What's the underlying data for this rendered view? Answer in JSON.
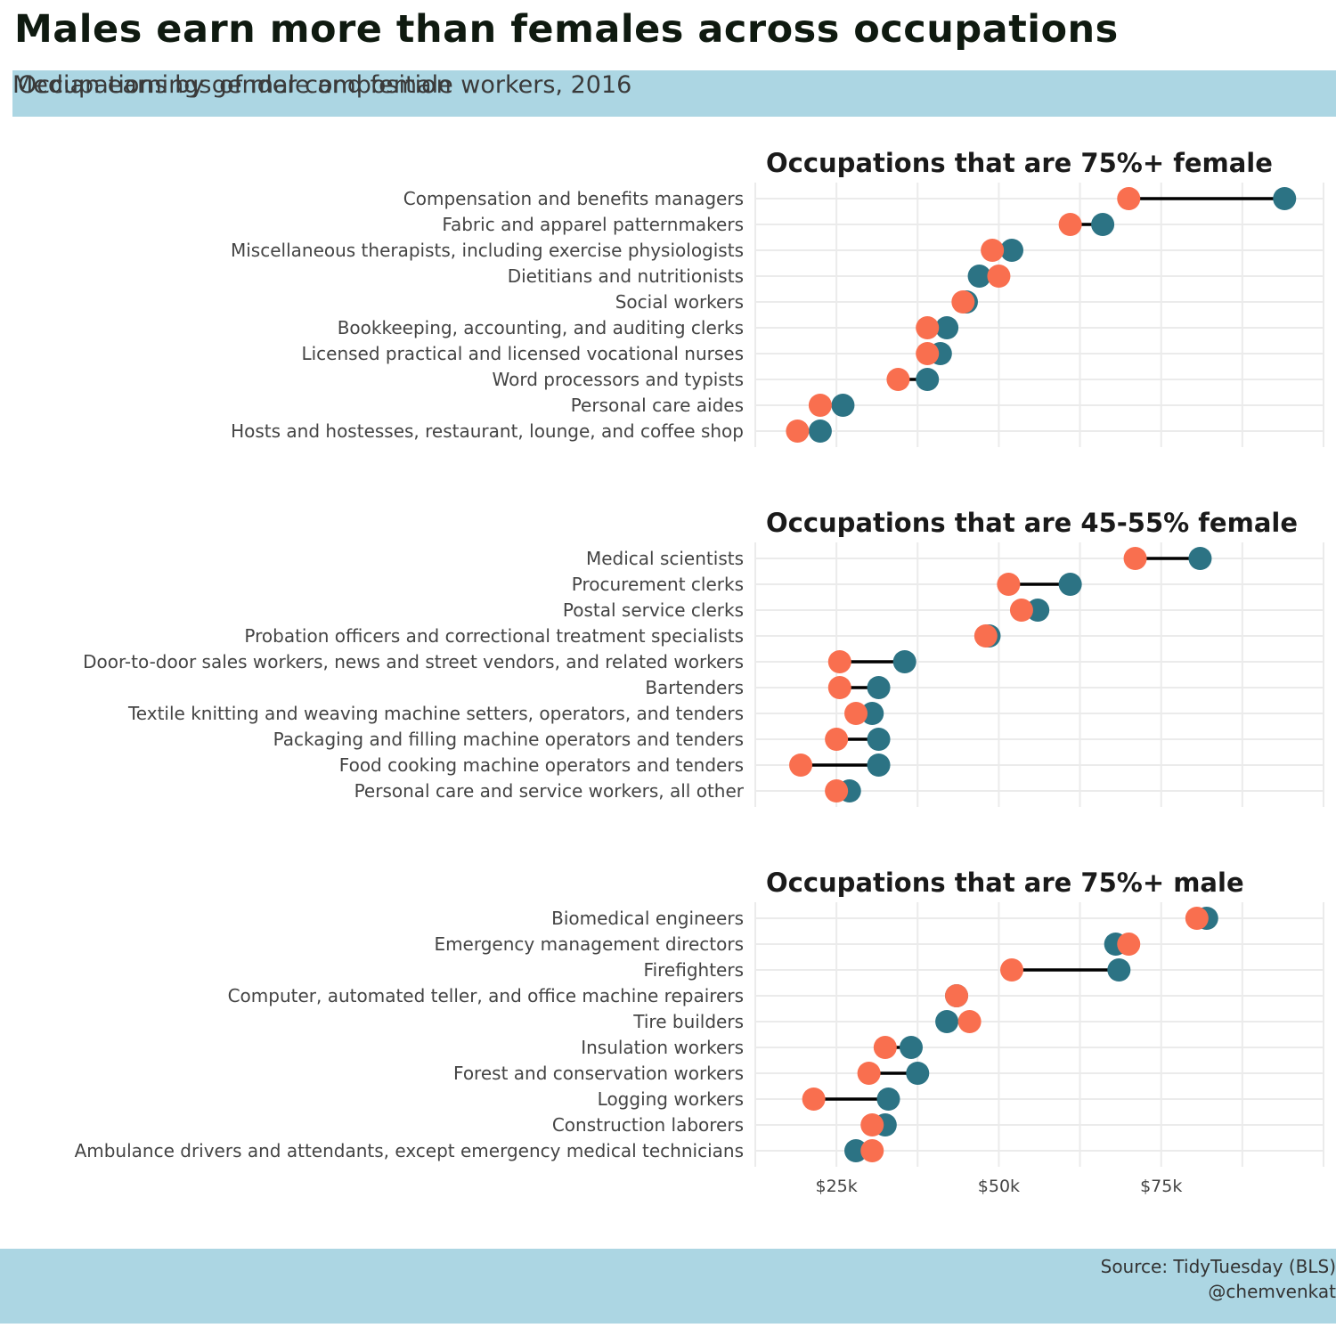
{
  "title": "Males earn more than females across occupations",
  "subtitle": {
    "line1": "Median earnings of male and female workers, 2016",
    "line2": "Occupations by gender composition"
  },
  "caption": {
    "source": "Source: TidyTuesday (BLS)",
    "author": "@chemvenkat"
  },
  "colors": {
    "male": "#2c7384",
    "female": "#f96f4f",
    "segment": "#000000"
  },
  "chart_data": {
    "type": "dumbbell",
    "series": [
      {
        "name": "male"
      },
      {
        "name": "female"
      }
    ],
    "x_ticks": [
      {
        "value": 25000,
        "label": "$25k"
      },
      {
        "value": 50000,
        "label": "$50k"
      },
      {
        "value": 75000,
        "label": "$75k"
      }
    ],
    "xlim": [
      12500,
      100000
    ],
    "grid": true,
    "panels": [
      {
        "title": "Occupations that are 75%+ female",
        "rows": [
          {
            "occupation": "Compensation and benefits managers",
            "male": 94000,
            "female": 70000
          },
          {
            "occupation": "Fabric and apparel patternmakers",
            "male": 66000,
            "female": 61000
          },
          {
            "occupation": "Miscellaneous therapists, including exercise physiologists",
            "male": 52000,
            "female": 49000
          },
          {
            "occupation": "Dietitians and nutritionists",
            "male": 47000,
            "female": 50000
          },
          {
            "occupation": "Social workers",
            "male": 45000,
            "female": 44500
          },
          {
            "occupation": "Bookkeeping, accounting, and auditing clerks",
            "male": 42000,
            "female": 39000
          },
          {
            "occupation": "Licensed practical and licensed vocational nurses",
            "male": 41000,
            "female": 39000
          },
          {
            "occupation": "Word processors and typists",
            "male": 39000,
            "female": 34500
          },
          {
            "occupation": "Personal care aides",
            "male": 26000,
            "female": 22500
          },
          {
            "occupation": "Hosts and hostesses, restaurant, lounge, and coffee shop",
            "male": 22500,
            "female": 19000
          }
        ]
      },
      {
        "title": "Occupations that are 45-55% female",
        "rows": [
          {
            "occupation": "Medical scientists",
            "male": 81000,
            "female": 71000
          },
          {
            "occupation": "Procurement clerks",
            "male": 61000,
            "female": 51500
          },
          {
            "occupation": "Postal service clerks",
            "male": 56000,
            "female": 53500
          },
          {
            "occupation": "Probation officers and correctional treatment specialists",
            "male": 48500,
            "female": 48000
          },
          {
            "occupation": "Door-to-door sales workers, news and street vendors, and related workers",
            "male": 35500,
            "female": 25500
          },
          {
            "occupation": "Bartenders",
            "male": 31500,
            "female": 25500
          },
          {
            "occupation": "Textile knitting and weaving machine setters, operators, and tenders",
            "male": 30500,
            "female": 28000
          },
          {
            "occupation": "Packaging and filling machine operators and tenders",
            "male": 31500,
            "female": 25000
          },
          {
            "occupation": "Food cooking machine operators and tenders",
            "male": 31500,
            "female": 19500
          },
          {
            "occupation": "Personal care and service workers, all other",
            "male": 27000,
            "female": 25000
          }
        ]
      },
      {
        "title": "Occupations that are 75%+ male",
        "rows": [
          {
            "occupation": "Biomedical engineers",
            "male": 82000,
            "female": 80500
          },
          {
            "occupation": "Emergency management directors",
            "male": 68000,
            "female": 70000
          },
          {
            "occupation": "Firefighters",
            "male": 68500,
            "female": 52000
          },
          {
            "occupation": "Computer, automated teller, and office machine repairers",
            "male": 43500,
            "female": 43500
          },
          {
            "occupation": "Tire builders",
            "male": 42000,
            "female": 45500
          },
          {
            "occupation": "Insulation workers",
            "male": 36500,
            "female": 32500
          },
          {
            "occupation": "Forest and conservation workers",
            "male": 37500,
            "female": 30000
          },
          {
            "occupation": "Logging workers",
            "male": 33000,
            "female": 21500
          },
          {
            "occupation": "Construction laborers",
            "male": 32500,
            "female": 30500
          },
          {
            "occupation": "Ambulance drivers and attendants, except emergency medical technicians",
            "male": 28000,
            "female": 30500
          }
        ]
      }
    ]
  }
}
